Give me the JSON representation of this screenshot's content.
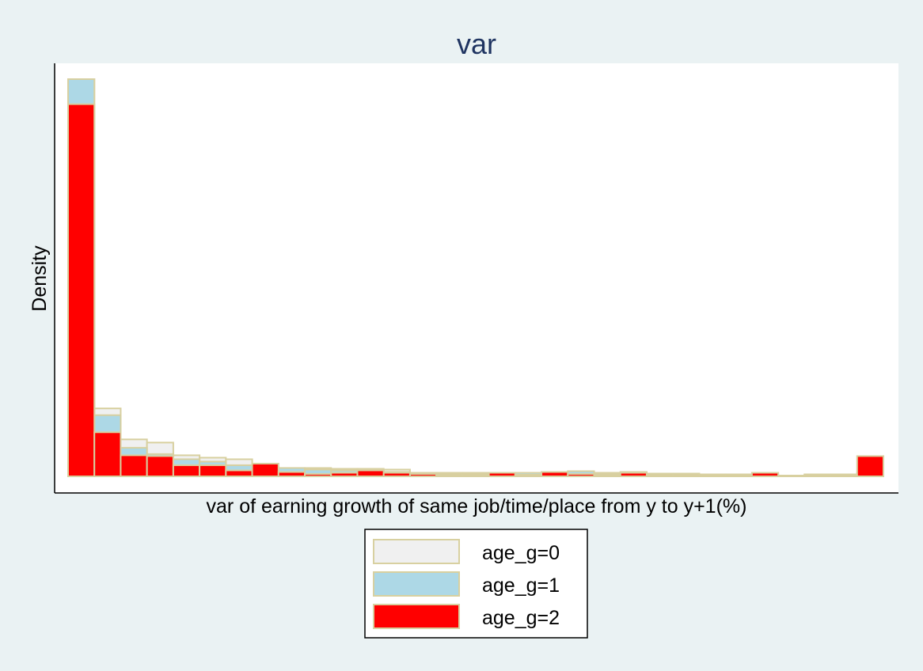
{
  "chart_data": {
    "type": "bar",
    "title": "var",
    "xlabel": "var of earning growth of same job/time/place from y to y+1(%)",
    "ylabel": "Density",
    "x_ticks_shown": false,
    "y_ticks_shown": false,
    "grid": false,
    "legend_position": "bottom",
    "bar_outline_color": "#d8d0a0",
    "plot_background": "#ffffff",
    "outer_background": "#eaf2f3",
    "bins": 31,
    "ylim": [
      0,
      1.0
    ],
    "series": [
      {
        "name": "age_g=0",
        "color": "#f0f0f0",
        "values": [
          1.0,
          0.171,
          0.093,
          0.085,
          0.053,
          0.047,
          0.043,
          0.025,
          0.021,
          0.021,
          0.019,
          0.019,
          0.017,
          0.007,
          0.009,
          0.009,
          0.005,
          0.007,
          0.009,
          0.011,
          0.009,
          0.011,
          0.007,
          0.007,
          0.005,
          0.005,
          0.005,
          0.002,
          0.005,
          0.005,
          0.009
        ]
      },
      {
        "name": "age_g=1",
        "color": "#add8e6",
        "values": [
          1.0,
          0.154,
          0.072,
          0.056,
          0.043,
          0.037,
          0.028,
          0.024,
          0.021,
          0.017,
          0.015,
          0.013,
          0.011,
          0.009,
          0.007,
          0.007,
          0.005,
          0.009,
          0.009,
          0.013,
          0.005,
          0.007,
          0.005,
          0.005,
          0.005,
          0.005,
          0.005,
          0.002,
          0.004,
          0.004,
          0.007
        ]
      },
      {
        "name": "age_g=2",
        "color": "#ff0000",
        "values": [
          0.937,
          0.111,
          0.053,
          0.051,
          0.028,
          0.028,
          0.015,
          0.032,
          0.011,
          0.006,
          0.009,
          0.015,
          0.009,
          0.006,
          0.004,
          0.004,
          0.009,
          0.004,
          0.011,
          0.006,
          0.004,
          0.009,
          0.004,
          0.004,
          0.004,
          0.004,
          0.009,
          0.002,
          0.004,
          0.004,
          0.051
        ]
      }
    ]
  }
}
